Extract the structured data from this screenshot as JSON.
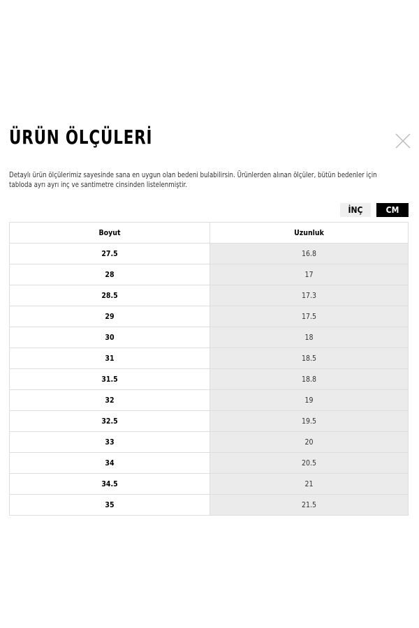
{
  "modal": {
    "title": "ÜRÜN ÖLÇÜLERİ",
    "description_line1": "Detaylı ürün ölçülerimiz sayesinde sana en uygun olan bedeni bulabilirsin. Ürünlerden alınan ölçüler, bütün bedenler için",
    "description_line2": "tabloda ayrı ayrı inç ve santimetre cinsinden listelenmiştir.",
    "close_icon": "close-x-icon"
  },
  "units": {
    "inch_label": "İNÇ",
    "cm_label": "CM",
    "selected": "CM"
  },
  "table": {
    "headers": [
      "Boyut",
      "Uzunluk"
    ],
    "rows": [
      [
        "27.5",
        "16.8"
      ],
      [
        "28",
        "17"
      ],
      [
        "28.5",
        "17.3"
      ],
      [
        "29",
        "17.5"
      ],
      [
        "30",
        "18"
      ],
      [
        "31",
        "18.5"
      ],
      [
        "31.5",
        "18.8"
      ],
      [
        "32",
        "19"
      ],
      [
        "32.5",
        "19.5"
      ],
      [
        "33",
        "20"
      ],
      [
        "34",
        "20.5"
      ],
      [
        "34.5",
        "21"
      ],
      [
        "35",
        "21.5"
      ]
    ]
  }
}
